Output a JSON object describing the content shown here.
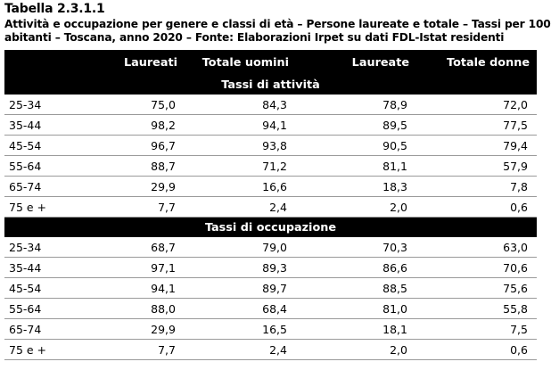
{
  "table_title": "Tabella 2.3.1.1",
  "table_caption_line1": "Attività e occupazione per genere e classi di età – Persone laureate e totale – Tassi per 100",
  "table_caption_line2": "abitanti – Toscana, anno 2020 – Fonte: Elaborazioni Irpet su dati FDL-Istat residenti",
  "columns": [
    "",
    "Laureati",
    "Totale uomini",
    "Laureate",
    "Totale donne"
  ],
  "sections": [
    {
      "title": "Tassi di attività",
      "rows": [
        {
          "label": "25-34",
          "values": [
            "75,0",
            "84,3",
            "78,9",
            "72,0"
          ]
        },
        {
          "label": "35-44",
          "values": [
            "98,2",
            "94,1",
            "89,5",
            "77,5"
          ]
        },
        {
          "label": "45-54",
          "values": [
            "96,7",
            "93,8",
            "90,5",
            "79,4"
          ]
        },
        {
          "label": "55-64",
          "values": [
            "88,7",
            "71,2",
            "81,1",
            "57,9"
          ]
        },
        {
          "label": "65-74",
          "values": [
            "29,9",
            "16,6",
            "18,3",
            "7,8"
          ]
        },
        {
          "label": "75 e +",
          "values": [
            "7,7",
            "2,4",
            "2,0",
            "0,6"
          ]
        }
      ]
    },
    {
      "title": "Tassi di occupazione",
      "rows": [
        {
          "label": "25-34",
          "values": [
            "68,7",
            "79,0",
            "70,3",
            "63,0"
          ]
        },
        {
          "label": "35-44",
          "values": [
            "97,1",
            "89,3",
            "86,6",
            "70,6"
          ]
        },
        {
          "label": "45-54",
          "values": [
            "94,1",
            "89,7",
            "88,5",
            "75,6"
          ]
        },
        {
          "label": "55-64",
          "values": [
            "88,0",
            "68,4",
            "81,0",
            "55,8"
          ]
        },
        {
          "label": "65-74",
          "values": [
            "29,9",
            "16,5",
            "18,1",
            "7,5"
          ]
        },
        {
          "label": "75 e +",
          "values": [
            "7,7",
            "2,4",
            "2,0",
            "0,6"
          ]
        }
      ]
    }
  ]
}
